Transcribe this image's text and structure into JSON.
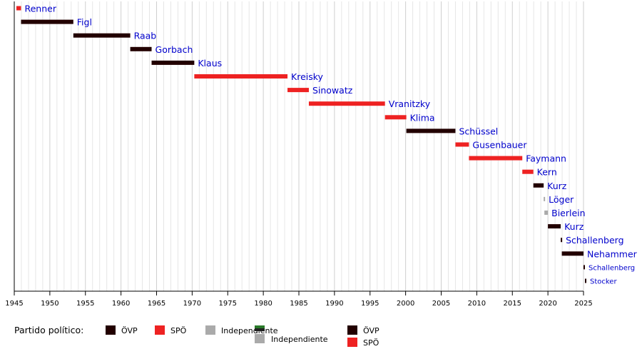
{
  "chart_data": {
    "type": "bar",
    "title": "",
    "xlabel": "",
    "ylabel": "",
    "xlim": [
      1945,
      2025
    ],
    "x_ticks": [
      "1945",
      "1950",
      "1955",
      "1960",
      "1965",
      "1970",
      "1975",
      "1980",
      "1985",
      "1990",
      "1995",
      "2000",
      "2005",
      "2010",
      "2015",
      "2020",
      "2025"
    ],
    "grid": "vertical, every year",
    "parties": {
      "ÖVP": "#220000",
      "SPÖ": "#ee2222",
      "Independiente": "#aaaaaa"
    },
    "chancellors": [
      {
        "name": "Renner",
        "start": 1945.3,
        "end": 1945.95,
        "party": "SPÖ"
      },
      {
        "name": "Figl",
        "start": 1945.95,
        "end": 1953.3,
        "party": "ÖVP"
      },
      {
        "name": "Raab",
        "start": 1953.3,
        "end": 1961.3,
        "party": "ÖVP"
      },
      {
        "name": "Gorbach",
        "start": 1961.3,
        "end": 1964.3,
        "party": "ÖVP"
      },
      {
        "name": "Klaus",
        "start": 1964.3,
        "end": 1970.3,
        "party": "ÖVP"
      },
      {
        "name": "Kreisky",
        "start": 1970.3,
        "end": 1983.4,
        "party": "SPÖ"
      },
      {
        "name": "Sinowatz",
        "start": 1983.4,
        "end": 1986.4,
        "party": "SPÖ"
      },
      {
        "name": "Vranitzky",
        "start": 1986.4,
        "end": 1997.1,
        "party": "SPÖ"
      },
      {
        "name": "Klima",
        "start": 1997.1,
        "end": 2000.1,
        "party": "SPÖ"
      },
      {
        "name": "Schüssel",
        "start": 2000.1,
        "end": 2007.0,
        "party": "ÖVP"
      },
      {
        "name": "Gusenbauer",
        "start": 2007.0,
        "end": 2008.9,
        "party": "SPÖ"
      },
      {
        "name": "Faymann",
        "start": 2008.9,
        "end": 2016.4,
        "party": "SPÖ"
      },
      {
        "name": "Kern",
        "start": 2016.4,
        "end": 2017.95,
        "party": "SPÖ"
      },
      {
        "name": "Kurz",
        "start": 2017.95,
        "end": 2019.4,
        "party": "ÖVP"
      },
      {
        "name": "Löger",
        "start": 2019.4,
        "end": 2019.5,
        "party": "Independiente"
      },
      {
        "name": "Bierlein",
        "start": 2019.5,
        "end": 2020.0,
        "party": "Independiente"
      },
      {
        "name": "Kurz",
        "start": 2020.0,
        "end": 2021.8,
        "party": "ÖVP"
      },
      {
        "name": "Schallenberg",
        "start": 2021.8,
        "end": 2021.95,
        "party": "ÖVP"
      },
      {
        "name": "Nehammer",
        "start": 2021.95,
        "end": 2025.0,
        "party": "ÖVP"
      },
      {
        "name": "Schallenberg",
        "start": 2025.0,
        "end": 2025.2,
        "party": "ÖVP"
      },
      {
        "name": "Stocker",
        "start": 2025.2,
        "end": 2025.3,
        "party": "ÖVP"
      }
    ],
    "legend": {
      "title": "Partido político:",
      "placement": "bottom-left",
      "items": [
        {
          "label": "ÖVP",
          "party": "ÖVP"
        },
        {
          "label": "SPÖ",
          "party": "SPÖ"
        },
        {
          "label": "Independiente",
          "party": "Independiente"
        },
        {
          "label": "Independiente",
          "party": "Independiente"
        },
        {
          "label": "ÖVP",
          "party": "ÖVP"
        },
        {
          "label": "SPÖ",
          "party": "SPÖ"
        }
      ]
    }
  }
}
